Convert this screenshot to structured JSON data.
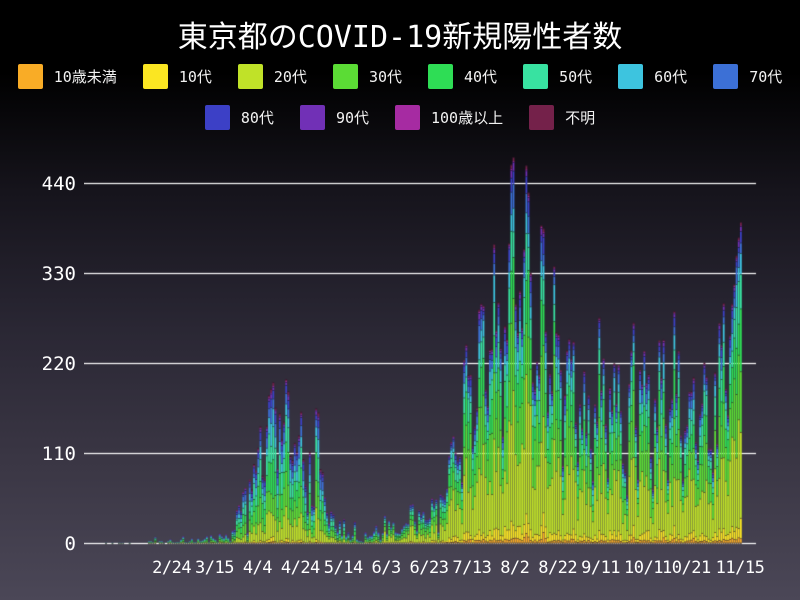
{
  "title": "東京都のCOVID-19新規陽性者数",
  "chart_data": {
    "type": "bar",
    "stacked": true,
    "title": "東京都のCOVID-19新規陽性者数",
    "background": "black-to-violet-gradient",
    "grid": "horizontal-white-lines",
    "legend_position": "top, two rows",
    "yticks": [
      0,
      110,
      220,
      330,
      440
    ],
    "ylim": [
      0,
      480
    ],
    "x_unit": "day",
    "start_date": "1/16",
    "end_date": "11/15",
    "xtick_labels": [
      "2/24",
      "3/15",
      "4/4",
      "4/24",
      "5/14",
      "6/3",
      "6/23",
      "7/13",
      "8/2",
      "8/22",
      "9/11",
      "10/1",
      "10/21",
      "11/15"
    ],
    "xtick_day_index": [
      39,
      59,
      79,
      99,
      119,
      139,
      159,
      179,
      199,
      219,
      239,
      259,
      279,
      304
    ],
    "series": [
      {
        "name": "10歳未満",
        "color": "#F9AC26"
      },
      {
        "name": "10代",
        "color": "#FBE622"
      },
      {
        "name": "20代",
        "color": "#C0E228"
      },
      {
        "name": "30代",
        "color": "#5BDC35"
      },
      {
        "name": "40代",
        "color": "#2EDD55"
      },
      {
        "name": "50代",
        "color": "#38E2A1"
      },
      {
        "name": "60代",
        "color": "#3DC4DF"
      },
      {
        "name": "70代",
        "color": "#3C70D6"
      },
      {
        "name": "80代",
        "color": "#3C40C6"
      },
      {
        "name": "90代",
        "color": "#7130B6"
      },
      {
        "name": "100歳以上",
        "color": "#A62BA2"
      },
      {
        "name": "不明",
        "color": "#74214A"
      }
    ],
    "legend_row_split": 8,
    "age_share_wave1": [
      0.01,
      0.02,
      0.17,
      0.18,
      0.17,
      0.15,
      0.1,
      0.09,
      0.06,
      0.025,
      0.005,
      0.02
    ],
    "age_share_wave2": [
      0.02,
      0.04,
      0.32,
      0.22,
      0.14,
      0.1,
      0.06,
      0.045,
      0.03,
      0.015,
      0.003,
      0.007
    ],
    "wave2_start_day_index": 137,
    "daily_totals": [
      0,
      0,
      0,
      0,
      0,
      0,
      0,
      0,
      1,
      0,
      0,
      1,
      0,
      0,
      1,
      1,
      1,
      0,
      0,
      1,
      0,
      0,
      0,
      0,
      0,
      0,
      0,
      0,
      3,
      3,
      2,
      8,
      0,
      3,
      3,
      1,
      0,
      3,
      5,
      2,
      1,
      2,
      2,
      5,
      9,
      2,
      1,
      3,
      6,
      2,
      2,
      6,
      3,
      4,
      6,
      9,
      2,
      10,
      7,
      5,
      2,
      12,
      9,
      7,
      11,
      7,
      3,
      16,
      17,
      41,
      47,
      40,
      63,
      68,
      13,
      78,
      66,
      97,
      89,
      117,
      143,
      83,
      79,
      144,
      181,
      189,
      197,
      166,
      91,
      159,
      127,
      149,
      201,
      186,
      107,
      102,
      123,
      112,
      132,
      161,
      103,
      72,
      39,
      112,
      47,
      46,
      165,
      160,
      91,
      87,
      57,
      38,
      25,
      39,
      36,
      22,
      15,
      28,
      10,
      30,
      9,
      14,
      5,
      10,
      27,
      5,
      3,
      3,
      2,
      14,
      8,
      10,
      10,
      15,
      22,
      14,
      5,
      13,
      34,
      12,
      28,
      20,
      26,
      14,
      13,
      12,
      18,
      22,
      25,
      24,
      47,
      48,
      27,
      16,
      41,
      35,
      39,
      29,
      29,
      31,
      55,
      48,
      54,
      14,
      60,
      58,
      54,
      67,
      107,
      124,
      131,
      111,
      102,
      106,
      75,
      224,
      243,
      206,
      206,
      119,
      143,
      165,
      286,
      293,
      290,
      188,
      168,
      237,
      238,
      366,
      260,
      295,
      239,
      131,
      266,
      250,
      367,
      463,
      472,
      292,
      258,
      309,
      263,
      360,
      462,
      429,
      331,
      197,
      188,
      222,
      206,
      389,
      385,
      260,
      161,
      207,
      186,
      339,
      258,
      256,
      212,
      95,
      182,
      236,
      250,
      226,
      247,
      148,
      100,
      170,
      141,
      211,
      136,
      181,
      116,
      77,
      170,
      149,
      276,
      187,
      226,
      146,
      80,
      191,
      163,
      220,
      171,
      218,
      162,
      98,
      88,
      59,
      195,
      235,
      270,
      144,
      78,
      212,
      194,
      235,
      196,
      207,
      107,
      66,
      177,
      142,
      248,
      203,
      249,
      146,
      78,
      166,
      177,
      284,
      184,
      235,
      132,
      78,
      139,
      145,
      185,
      186,
      203,
      124,
      102,
      158,
      171,
      221,
      204,
      116,
      116,
      87,
      209,
      122,
      269,
      242,
      294,
      189,
      157,
      255,
      293,
      317,
      352,
      374,
      393
    ]
  }
}
